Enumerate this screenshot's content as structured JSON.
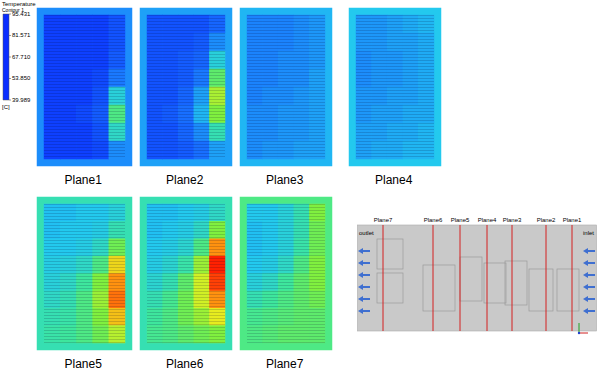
{
  "chart_data": {
    "type": "heatmap",
    "panels": [
      {
        "name": "Plane1",
        "frame": 50,
        "cells": [
          [
            42,
            42,
            42,
            42,
            44
          ],
          [
            42,
            42,
            42,
            42,
            44
          ],
          [
            42,
            42,
            42,
            42,
            45
          ],
          [
            42,
            42,
            42,
            43,
            48
          ],
          [
            42,
            42,
            42,
            44,
            58
          ],
          [
            42,
            42,
            43,
            45,
            66
          ],
          [
            42,
            42,
            42,
            44,
            60
          ],
          [
            42,
            42,
            42,
            43,
            50
          ]
        ]
      },
      {
        "name": "Plane2",
        "frame": 52,
        "cells": [
          [
            44,
            44,
            44,
            44,
            46
          ],
          [
            44,
            44,
            44,
            45,
            50
          ],
          [
            44,
            44,
            45,
            46,
            58
          ],
          [
            44,
            44,
            45,
            48,
            68
          ],
          [
            44,
            44,
            46,
            52,
            75
          ],
          [
            44,
            45,
            47,
            54,
            72
          ],
          [
            44,
            44,
            46,
            50,
            62
          ],
          [
            44,
            44,
            45,
            47,
            52
          ]
        ]
      },
      {
        "name": "Plane3",
        "frame": 54,
        "cells": [
          [
            49,
            49,
            49,
            50,
            51
          ],
          [
            49,
            49,
            49,
            50,
            51
          ],
          [
            49,
            49,
            50,
            50,
            51
          ],
          [
            49,
            49,
            50,
            50,
            52
          ],
          [
            49,
            50,
            50,
            51,
            52
          ],
          [
            50,
            50,
            51,
            51,
            52
          ],
          [
            50,
            50,
            51,
            51,
            52
          ],
          [
            50,
            51,
            51,
            52,
            52
          ]
        ]
      },
      {
        "name": "Plane4",
        "frame": 56,
        "cells": [
          [
            51,
            51,
            52,
            53,
            54
          ],
          [
            51,
            51,
            52,
            52,
            53
          ],
          [
            50,
            51,
            51,
            52,
            53
          ],
          [
            50,
            51,
            51,
            52,
            53
          ],
          [
            51,
            51,
            52,
            52,
            53
          ],
          [
            51,
            52,
            52,
            53,
            53
          ],
          [
            52,
            52,
            53,
            53,
            54
          ],
          [
            52,
            53,
            53,
            54,
            54
          ]
        ]
      },
      {
        "name": "Plane5",
        "frame": 62,
        "cells": [
          [
            55,
            55,
            56,
            56,
            58
          ],
          [
            55,
            56,
            56,
            57,
            62
          ],
          [
            56,
            56,
            57,
            60,
            70
          ],
          [
            57,
            58,
            60,
            66,
            82
          ],
          [
            58,
            60,
            64,
            72,
            88
          ],
          [
            60,
            62,
            66,
            74,
            90
          ],
          [
            62,
            63,
            66,
            72,
            84
          ],
          [
            63,
            64,
            66,
            70,
            76
          ]
        ]
      },
      {
        "name": "Plane6",
        "frame": 62,
        "cells": [
          [
            55,
            55,
            56,
            57,
            60
          ],
          [
            55,
            56,
            57,
            60,
            72
          ],
          [
            56,
            57,
            59,
            66,
            88
          ],
          [
            57,
            59,
            63,
            74,
            95
          ],
          [
            59,
            62,
            68,
            78,
            93
          ],
          [
            62,
            65,
            70,
            78,
            88
          ],
          [
            64,
            66,
            70,
            74,
            80
          ],
          [
            65,
            66,
            68,
            70,
            72
          ]
        ]
      },
      {
        "name": "Plane7",
        "frame": 66,
        "cells": [
          [
            56,
            56,
            58,
            62,
            72
          ],
          [
            55,
            56,
            58,
            62,
            70
          ],
          [
            55,
            56,
            58,
            63,
            70
          ],
          [
            56,
            57,
            60,
            66,
            72
          ],
          [
            58,
            60,
            64,
            68,
            72
          ],
          [
            62,
            64,
            66,
            68,
            70
          ],
          [
            65,
            66,
            67,
            68,
            68
          ],
          [
            66,
            67,
            68,
            68,
            68
          ]
        ]
      }
    ],
    "colorbar": {
      "title": "Temperature",
      "subtitle": "Contour 1",
      "unit": "[C]",
      "range": [
        39.989,
        95.431
      ],
      "ticks": [
        39.989,
        {
          "value": 53.85,
          "label": "53.850"
        },
        {
          "value": 67.71,
          "label": "67.710"
        },
        81.571,
        95.431
      ]
    }
  },
  "schematic": {
    "outlet": "outlet",
    "inlet": "inlet",
    "planes": [
      "Plane7",
      "Plane6",
      "Plane5",
      "Plane4",
      "Plane3",
      "Plane2",
      "Plane1"
    ]
  }
}
